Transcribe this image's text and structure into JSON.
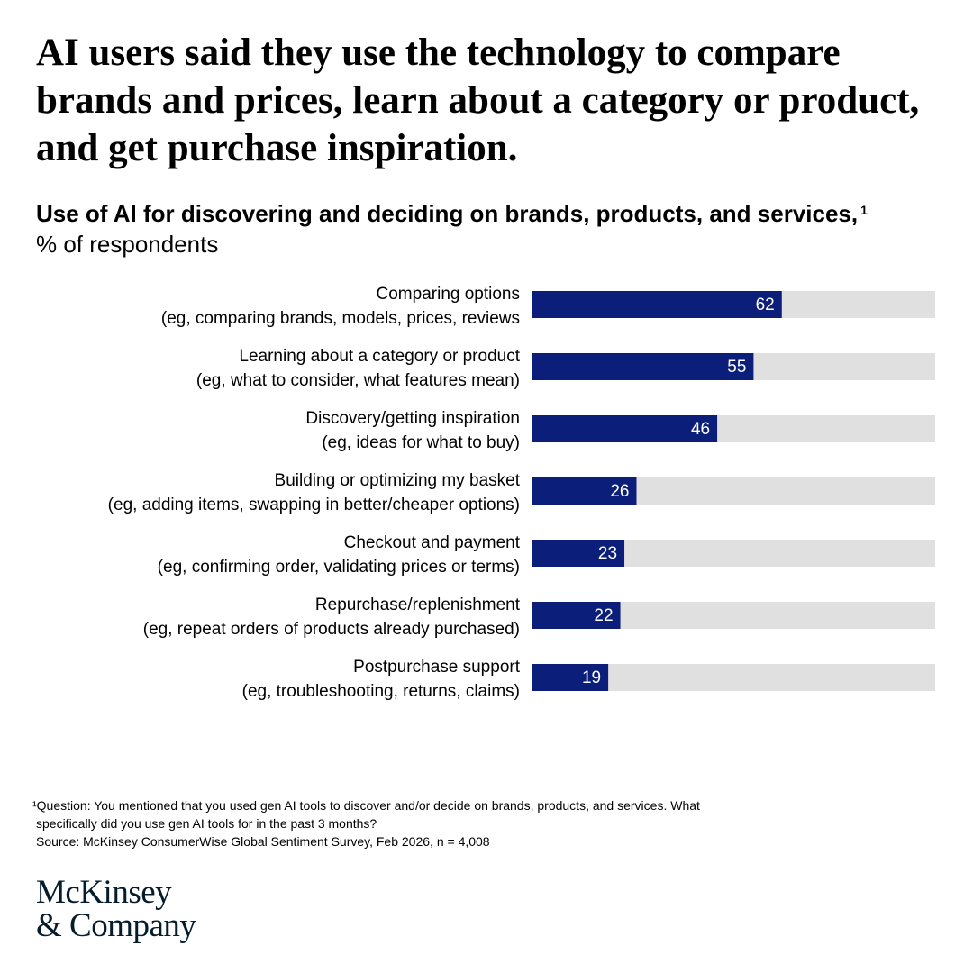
{
  "headline": "AI users said they use the technology to compare brands and prices, learn about a category or product, and get purchase inspiration.",
  "subtitle": "Use of AI for discovering and deciding on brands, products, and services,",
  "subtitle_footnote_mark": "1",
  "unit": "% of respondents",
  "colors": {
    "bar": "#0b1f7a",
    "track": "#e0e0e0"
  },
  "chart_data": {
    "type": "bar",
    "orientation": "horizontal",
    "ylabel": "% of respondents",
    "xlim": [
      0,
      100
    ],
    "categories": [
      [
        "Comparing options",
        "(eg, comparing brands, models, prices, reviews"
      ],
      [
        "Learning about a category or product",
        "(eg, what to consider, what features mean)"
      ],
      [
        "Discovery/getting inspiration",
        "(eg, ideas for what to buy)"
      ],
      [
        "Building or optimizing my basket",
        "(eg, adding items, swapping in better/cheaper options)"
      ],
      [
        "Checkout and payment",
        "(eg, confirming order, validating prices or terms)"
      ],
      [
        "Repurchase/replenishment",
        "(eg, repeat orders of products already purchased)"
      ],
      [
        "Postpurchase support",
        "(eg, troubleshooting, returns, claims)"
      ]
    ],
    "values": [
      62,
      55,
      46,
      26,
      23,
      22,
      19
    ],
    "grid": false,
    "legend": "none"
  },
  "footnote": {
    "line1": "¹Question: You mentioned that you used gen AI tools to discover and/or decide on brands, products, and services. What",
    "line2": "specifically did you use gen AI tools for in the past 3 months?",
    "source": "Source: McKinsey ConsumerWise Global Sentiment Survey, Feb 2026, n = 4,008"
  },
  "logo": {
    "line1": "McKinsey",
    "line2": "& Company"
  }
}
